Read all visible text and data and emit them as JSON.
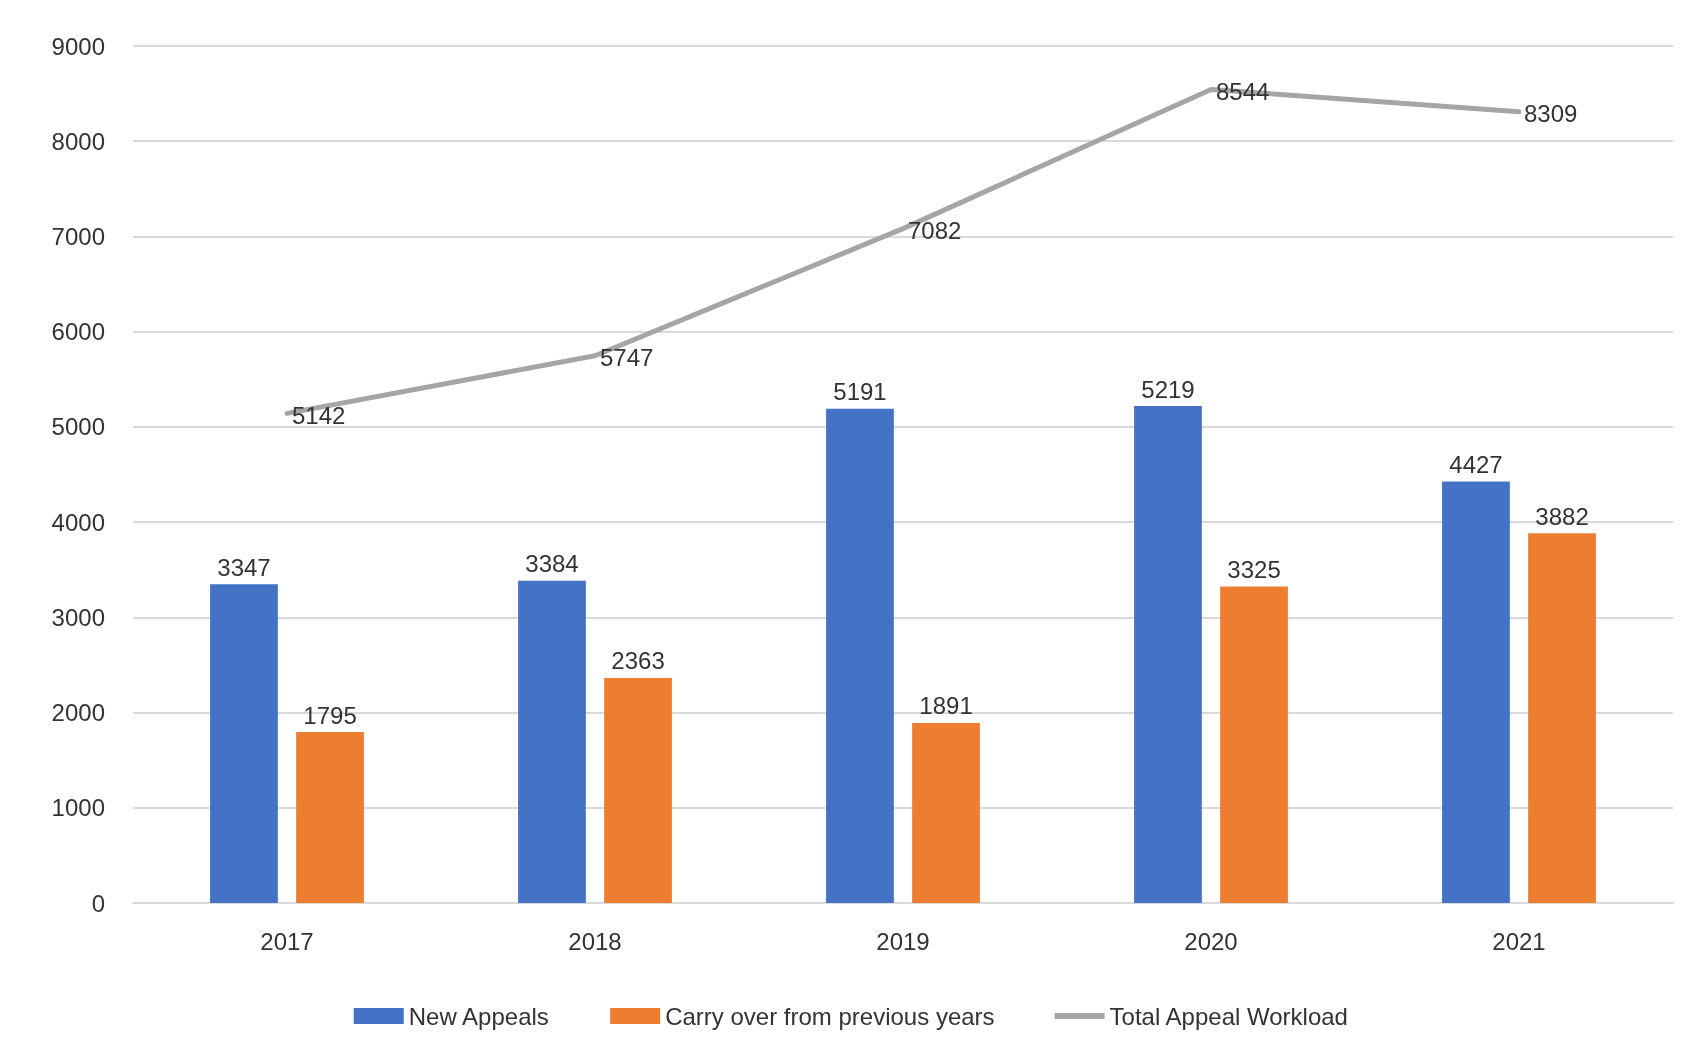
{
  "chart_data": {
    "type": "bar",
    "categories": [
      "2017",
      "2018",
      "2019",
      "2020",
      "2021"
    ],
    "series": [
      {
        "name": "New Appeals",
        "color": "#4472c4",
        "values": [
          3347,
          3384,
          5191,
          5219,
          4427
        ]
      },
      {
        "name": "Carry over from previous years",
        "color": "#ed7d31",
        "values": [
          1795,
          2363,
          1891,
          3325,
          3882
        ]
      },
      {
        "name": "Total Appeal Workload",
        "type": "line",
        "color": "#a5a5a5",
        "values": [
          5142,
          5747,
          7082,
          8544,
          8309
        ]
      }
    ],
    "ylim": [
      0,
      9000
    ],
    "yticks": [
      0,
      1000,
      2000,
      3000,
      4000,
      5000,
      6000,
      7000,
      8000,
      9000
    ],
    "grid": "y",
    "legend": "bottom",
    "data_labels": true,
    "marker": "none",
    "line_style": "solid"
  }
}
